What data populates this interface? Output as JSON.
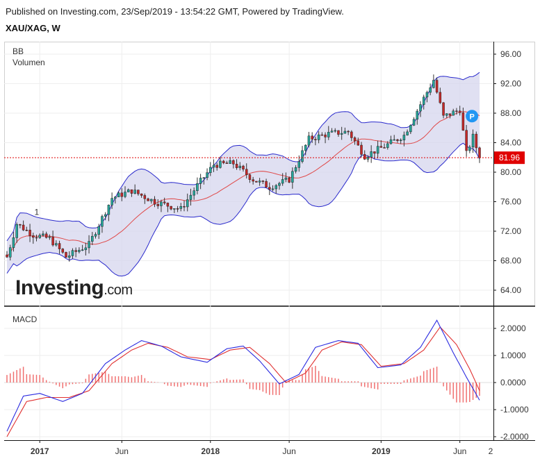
{
  "header": {
    "published": "Published on Investing.com, 23/Sep/2019 - 13:54:22 GMT, Powered by TradingView.",
    "symbol": "XAU/XAG, W"
  },
  "watermark": {
    "logo_main": "Investing",
    "logo_suffix": ".com"
  },
  "colors": {
    "up": "#26a69a",
    "down": "#c62828",
    "band_fill": "#d5d5ee",
    "band_line": "#2929cc",
    "basis_line": "#e04848",
    "macd_line": "#2a2ae0",
    "signal_line": "#e03030",
    "hist": "#f07070",
    "price_tag": "#e00000",
    "marker": "#2196f3"
  },
  "chart_data": [
    {
      "type": "candlestick",
      "indicators": [
        "BB",
        "Volumen"
      ],
      "ylim": [
        62,
        97.5
      ],
      "y_ticks": [
        "64.00",
        "68.00",
        "72.00",
        "76.00",
        "80.00",
        "84.00",
        "88.00",
        "92.00",
        "96.00"
      ],
      "last_price": "81.96",
      "marker_p": "P",
      "annotation": "1",
      "ohlc_anchors": [
        {
          "i": 0,
          "c": 68.5
        },
        {
          "i": 3,
          "c": 73.0
        },
        {
          "i": 8,
          "c": 71.5
        },
        {
          "i": 13,
          "c": 71.0
        },
        {
          "i": 18,
          "c": 68.5
        },
        {
          "i": 25,
          "c": 70.2
        },
        {
          "i": 32,
          "c": 76.5
        },
        {
          "i": 38,
          "c": 77.5
        },
        {
          "i": 45,
          "c": 76.0
        },
        {
          "i": 53,
          "c": 75.0
        },
        {
          "i": 58,
          "c": 78.2
        },
        {
          "i": 63,
          "c": 81.0
        },
        {
          "i": 69,
          "c": 81.2
        },
        {
          "i": 75,
          "c": 79.0
        },
        {
          "i": 80,
          "c": 78.0
        },
        {
          "i": 86,
          "c": 79.0
        },
        {
          "i": 92,
          "c": 84.5
        },
        {
          "i": 98,
          "c": 85.2
        },
        {
          "i": 104,
          "c": 85.5
        },
        {
          "i": 109,
          "c": 82.2
        },
        {
          "i": 115,
          "c": 83.5
        },
        {
          "i": 121,
          "c": 85.0
        },
        {
          "i": 126,
          "c": 89.2
        },
        {
          "i": 130,
          "c": 92.5
        },
        {
          "i": 133,
          "c": 87.5
        },
        {
          "i": 138,
          "c": 88.5
        },
        {
          "i": 140,
          "c": 82.5
        },
        {
          "i": 142,
          "c": 84.8
        },
        {
          "i": 144,
          "c": 81.96
        }
      ]
    },
    {
      "type": "line",
      "indicator": "MACD",
      "ylim": [
        -2.1,
        2.45
      ],
      "y_ticks": [
        "-2.0000",
        "-1.0000",
        "0.0000",
        "1.0000",
        "2.0000"
      ],
      "macd_anchors": [
        {
          "i": 0,
          "v": -1.8
        },
        {
          "i": 5,
          "v": -0.5
        },
        {
          "i": 10,
          "v": -0.4
        },
        {
          "i": 17,
          "v": -0.7
        },
        {
          "i": 23,
          "v": -0.4
        },
        {
          "i": 30,
          "v": 0.7
        },
        {
          "i": 36,
          "v": 1.2
        },
        {
          "i": 41,
          "v": 1.55
        },
        {
          "i": 47,
          "v": 1.35
        },
        {
          "i": 53,
          "v": 0.95
        },
        {
          "i": 61,
          "v": 0.75
        },
        {
          "i": 67,
          "v": 1.25
        },
        {
          "i": 72,
          "v": 1.35
        },
        {
          "i": 77,
          "v": 0.8
        },
        {
          "i": 83,
          "v": -0.05
        },
        {
          "i": 89,
          "v": 0.3
        },
        {
          "i": 94,
          "v": 1.3
        },
        {
          "i": 101,
          "v": 1.55
        },
        {
          "i": 107,
          "v": 1.45
        },
        {
          "i": 113,
          "v": 0.55
        },
        {
          "i": 120,
          "v": 0.65
        },
        {
          "i": 126,
          "v": 1.3
        },
        {
          "i": 131,
          "v": 2.3
        },
        {
          "i": 136,
          "v": 1.1
        },
        {
          "i": 140,
          "v": 0.2
        },
        {
          "i": 144,
          "v": -0.65
        }
      ],
      "signal_anchors": [
        {
          "i": 0,
          "v": -2.0
        },
        {
          "i": 6,
          "v": -0.7
        },
        {
          "i": 12,
          "v": -0.55
        },
        {
          "i": 19,
          "v": -0.55
        },
        {
          "i": 25,
          "v": -0.3
        },
        {
          "i": 32,
          "v": 0.7
        },
        {
          "i": 38,
          "v": 1.2
        },
        {
          "i": 43,
          "v": 1.45
        },
        {
          "i": 49,
          "v": 1.3
        },
        {
          "i": 55,
          "v": 0.95
        },
        {
          "i": 62,
          "v": 0.85
        },
        {
          "i": 68,
          "v": 1.2
        },
        {
          "i": 74,
          "v": 1.3
        },
        {
          "i": 80,
          "v": 0.7
        },
        {
          "i": 85,
          "v": 0.0
        },
        {
          "i": 91,
          "v": 0.35
        },
        {
          "i": 96,
          "v": 1.2
        },
        {
          "i": 102,
          "v": 1.5
        },
        {
          "i": 108,
          "v": 1.4
        },
        {
          "i": 114,
          "v": 0.6
        },
        {
          "i": 121,
          "v": 0.7
        },
        {
          "i": 127,
          "v": 1.2
        },
        {
          "i": 132,
          "v": 2.05
        },
        {
          "i": 137,
          "v": 1.4
        },
        {
          "i": 141,
          "v": 0.5
        },
        {
          "i": 144,
          "v": -0.3
        }
      ]
    }
  ],
  "x_axis": {
    "bars": 145,
    "ticks": [
      {
        "label": "2017",
        "bold": true,
        "bar": 10
      },
      {
        "label": "Jun",
        "bold": false,
        "bar": 35
      },
      {
        "label": "2018",
        "bold": true,
        "bar": 62
      },
      {
        "label": "Jun",
        "bold": false,
        "bar": 86
      },
      {
        "label": "2019",
        "bold": true,
        "bar": 114
      },
      {
        "label": "Jun",
        "bold": false,
        "bar": 138
      }
    ],
    "extra_label": "2"
  }
}
